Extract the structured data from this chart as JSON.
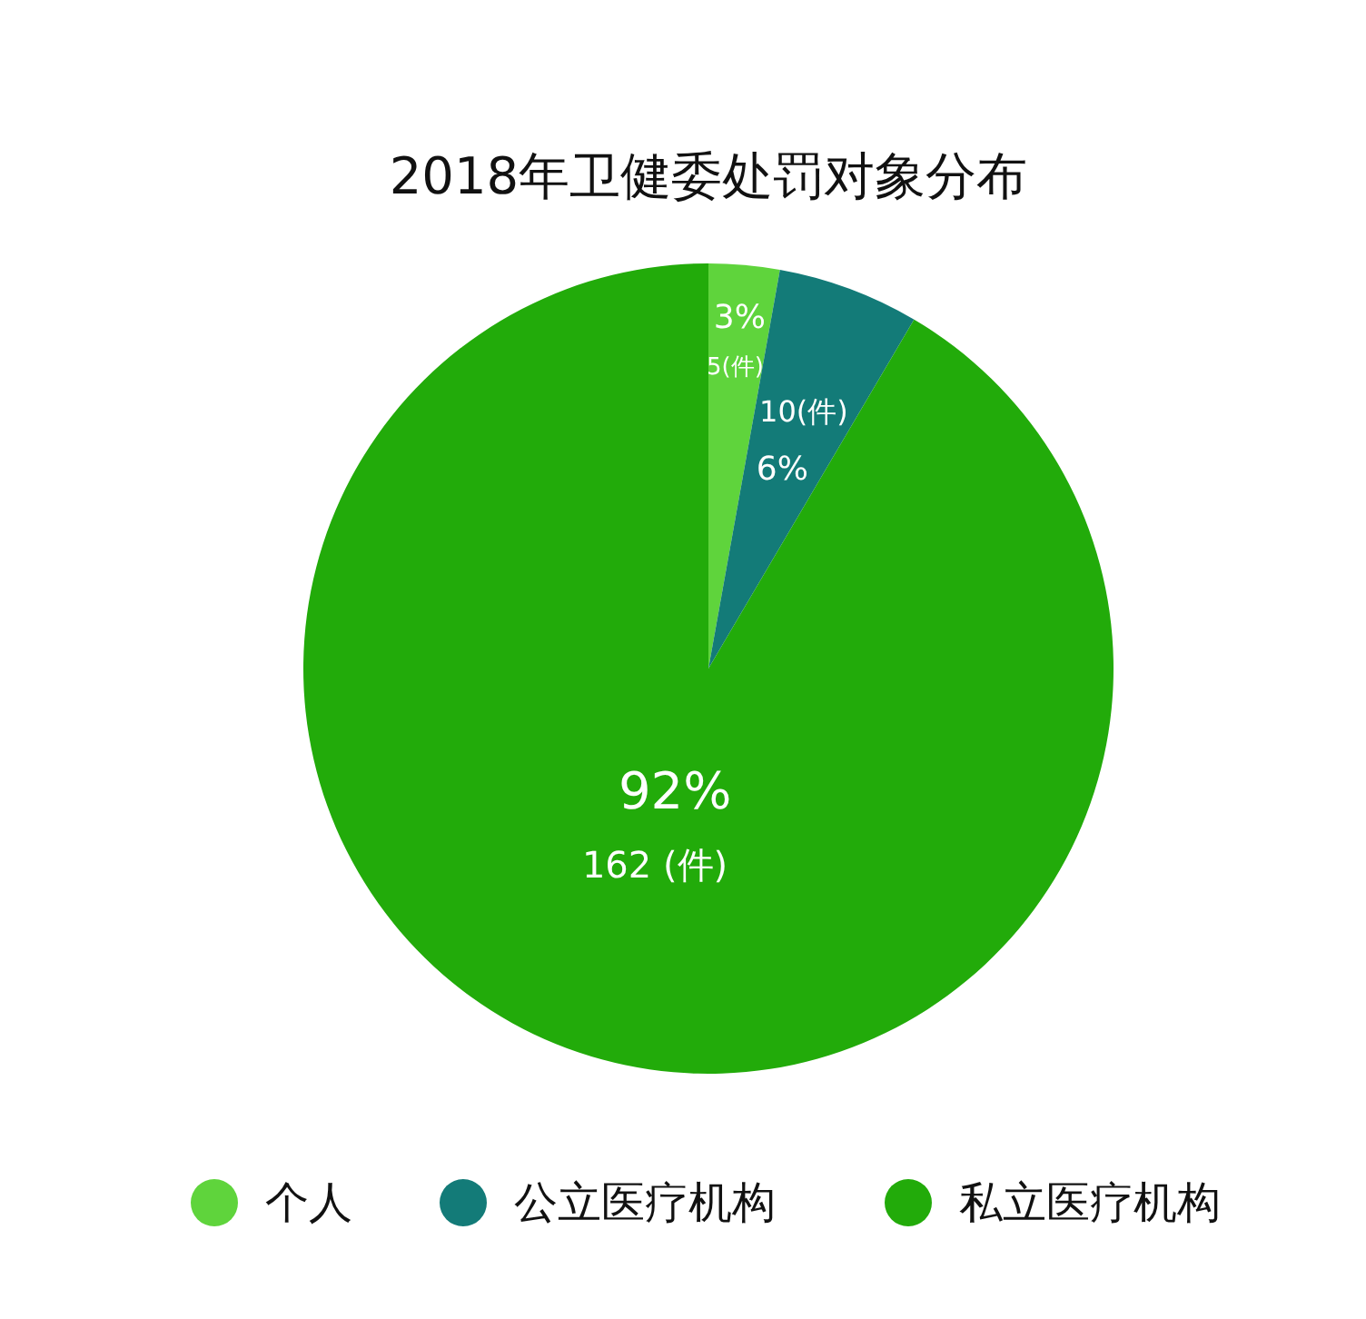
{
  "chart_data": {
    "type": "pie",
    "title": "2018年卫健委处罚对象分布",
    "categories": [
      "个人",
      "公立医疗机构",
      "私立医疗机构"
    ],
    "values": [
      5,
      10,
      162
    ],
    "colors": [
      "#5fd43c",
      "#137b78",
      "#22ab0a"
    ],
    "value_labels": [
      "5(件)",
      "10(件)",
      "162 (件)"
    ],
    "annotations": [
      {
        "text": "3%",
        "x": "个人"
      },
      {
        "text": "6%",
        "x": "公立医疗机构"
      },
      {
        "text": "92%",
        "x": "私立医疗机构"
      }
    ],
    "legend": "bottom"
  }
}
